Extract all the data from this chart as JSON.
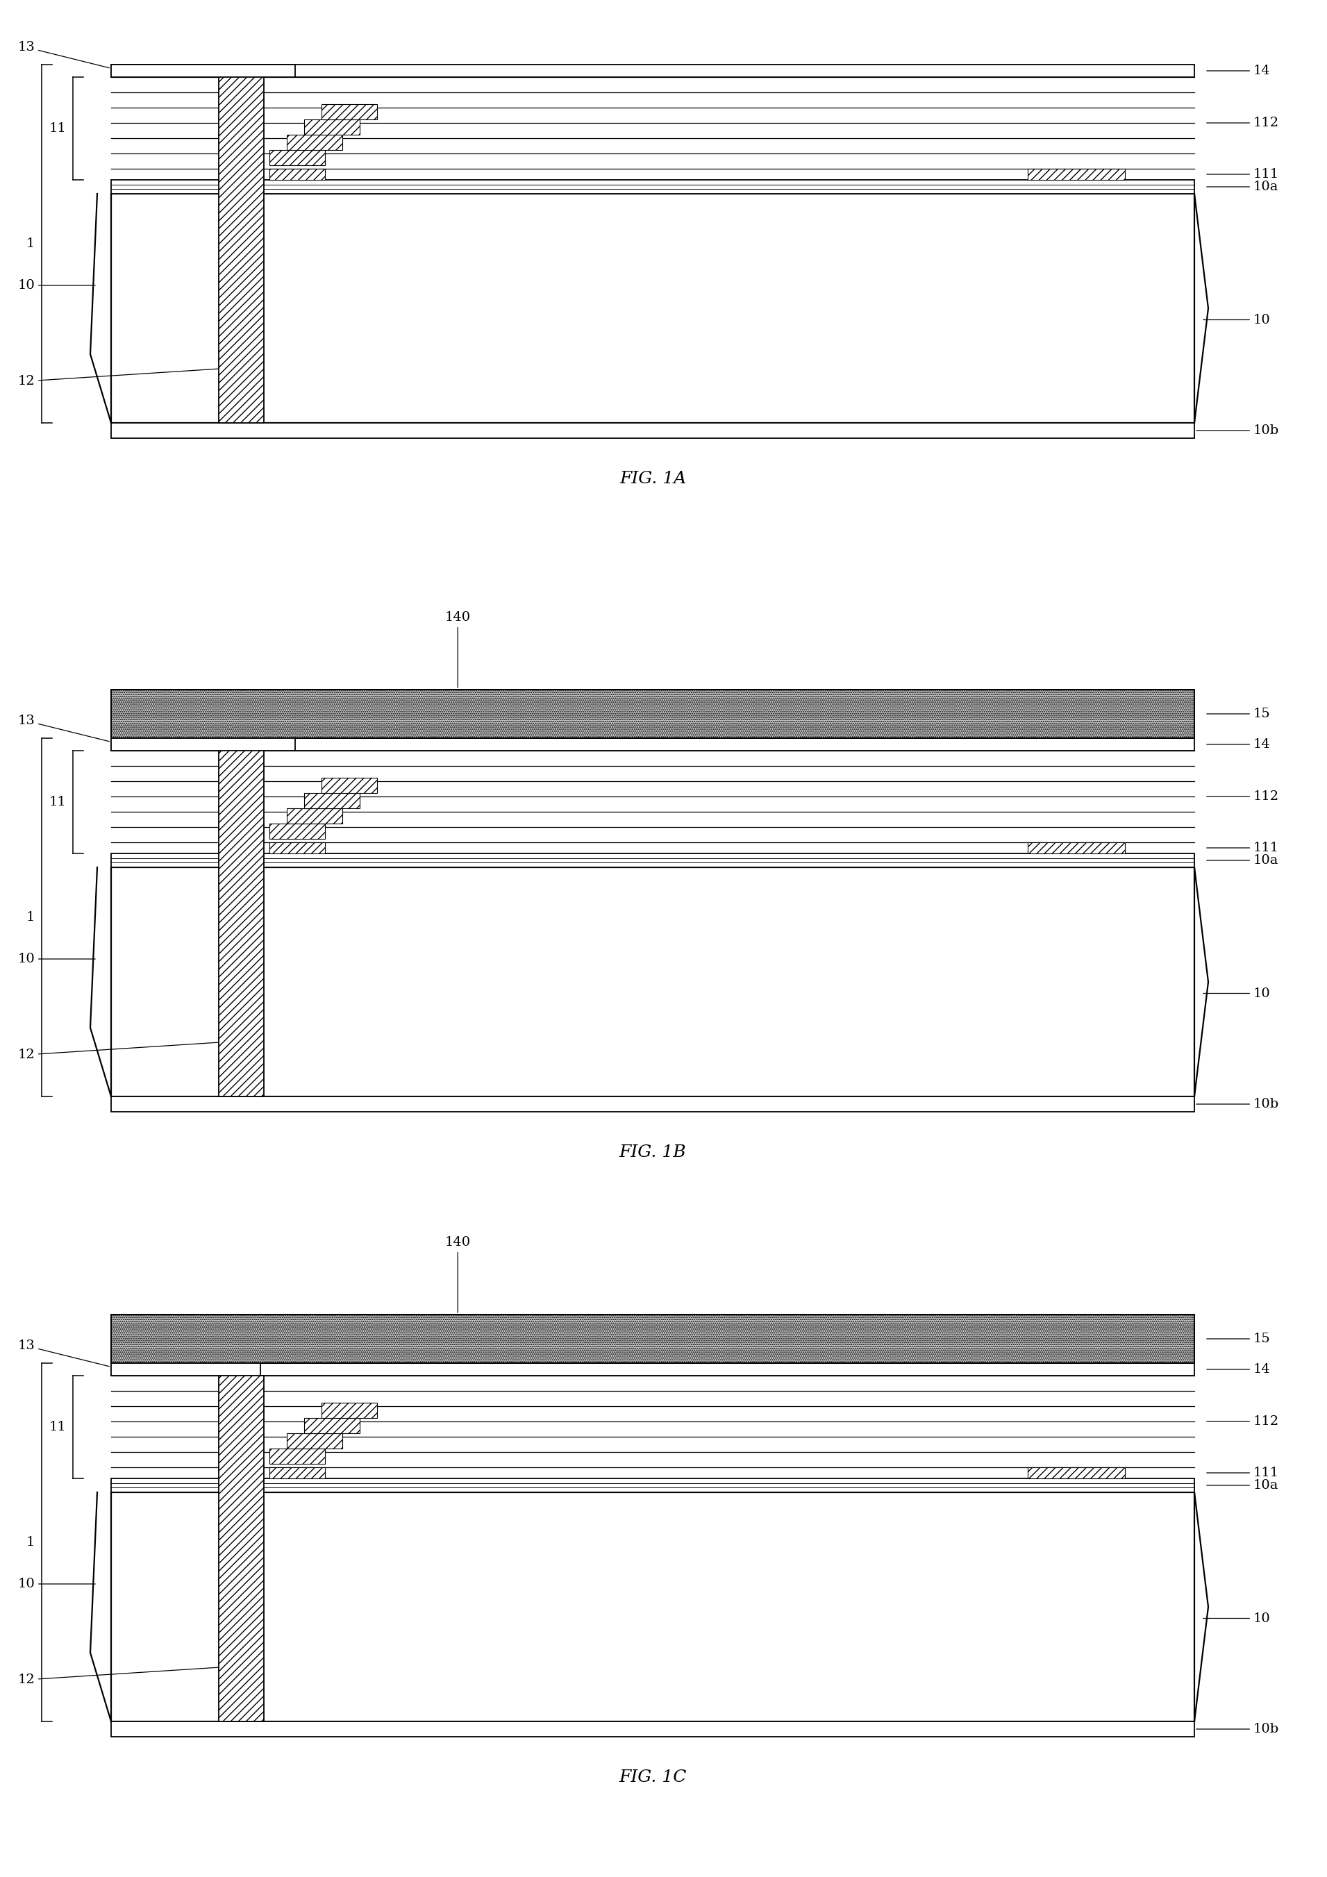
{
  "fig_width": 19.11,
  "fig_height": 27.03,
  "background": "#ffffff",
  "panels": [
    {
      "label": "FIG. 1A",
      "has_layer15": false
    },
    {
      "label": "FIG. 1B",
      "has_layer15": true
    },
    {
      "label": "FIG. 1C",
      "has_layer15": true,
      "trench_short": true
    }
  ],
  "lw": 1.2
}
